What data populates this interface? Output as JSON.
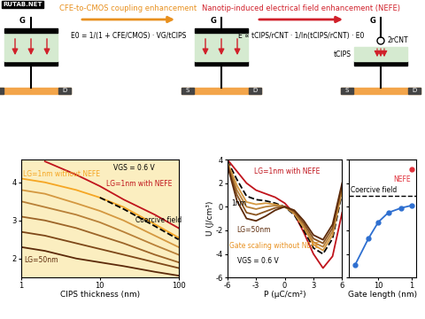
{
  "diagram": {
    "watermark": "RUTAB.NET",
    "terminals": {
      "gate": "G",
      "source": "S",
      "drain": "D"
    },
    "steps": [
      {
        "label": "CFE-to-CMOS coupling enhancement",
        "equation": "E0 = 1/(1 + CFE/CMOS) · VG/tCIPS",
        "color": "#e8901e"
      },
      {
        "label": "Nanotip-induced electrical field enhancement (NEFE)",
        "equation": "E ∝ tCIPS/rCNT · 1/ln(tCIPS/rCNT) · E0",
        "color": "#d0202a"
      }
    ],
    "tip_labels": {
      "radius": "2rCNT",
      "thickness": "tCIPS"
    }
  },
  "chart_data": [
    {
      "type": "line",
      "x_label": "CIPS thickness (nm)",
      "log": "x",
      "x": [
        1,
        2,
        5,
        10,
        20,
        50,
        100
      ],
      "xlim": [
        1,
        100
      ],
      "xticks": [
        1,
        10,
        100
      ],
      "ylim": [
        1.5,
        4.6
      ],
      "yticks": [
        2,
        3,
        4
      ],
      "series": [
        {
          "name": "LG=50nm",
          "color": "#5c2a0a",
          "values": [
            2.3,
            2.2,
            2.0,
            1.9,
            1.8,
            1.65,
            1.55
          ]
        },
        {
          "color": "#7d4718",
          "values": [
            2.7,
            2.6,
            2.4,
            2.25,
            2.1,
            1.9,
            1.75
          ]
        },
        {
          "color": "#9c6428",
          "values": [
            3.1,
            3.0,
            2.8,
            2.6,
            2.4,
            2.1,
            1.9
          ]
        },
        {
          "color": "#b88038",
          "values": [
            3.5,
            3.35,
            3.15,
            2.95,
            2.7,
            2.35,
            2.1
          ]
        },
        {
          "color": "#d49840",
          "values": [
            3.8,
            3.7,
            3.45,
            3.25,
            3.0,
            2.6,
            2.3
          ]
        },
        {
          "name": "LG=1nm without NEFE",
          "color": "#f5a623",
          "values": [
            4.1,
            4.0,
            3.8,
            3.6,
            3.35,
            2.9,
            2.55
          ]
        },
        {
          "name": "LG=1nm with NEFE",
          "color": "#c0141c",
          "values": [
            null,
            4.55,
            4.2,
            3.9,
            3.55,
            3.15,
            2.8
          ]
        },
        {
          "name": "Coercive field",
          "color": "#000000",
          "line_style": "dashed",
          "values": [
            null,
            null,
            null,
            3.6,
            3.3,
            2.85,
            2.5
          ]
        }
      ],
      "annotations": [
        {
          "text": "VGS = 0.6 V",
          "color": "#000000"
        }
      ]
    },
    {
      "type": "line",
      "x_label": "P (μC/cm²)",
      "y_label": "U (J/cm³)",
      "x": [
        -6,
        -5,
        -4,
        -3,
        -2,
        -1,
        0,
        1,
        2,
        3,
        4,
        5,
        6
      ],
      "xlim": [
        -6,
        6
      ],
      "xticks": [
        -6,
        -3,
        0,
        3,
        6
      ],
      "ylim": [
        -6,
        4
      ],
      "yticks": [
        -6,
        -4,
        -2,
        0,
        2,
        4
      ],
      "series": [
        {
          "name": "LG=1nm with NEFE",
          "color": "#c0141c",
          "values": [
            4.0,
            3.0,
            2.0,
            1.4,
            1.1,
            0.8,
            0.3,
            -0.6,
            -2.2,
            -4.0,
            -5.2,
            -4.2,
            -0.5
          ]
        },
        {
          "name": "1nm",
          "color": "#000000",
          "line_style": "dashed",
          "values": [
            3.9,
            2.3,
            0.9,
            0.6,
            0.5,
            0.3,
            0,
            -0.7,
            -2.0,
            -3.5,
            -4.0,
            -2.7,
            1.2
          ]
        },
        {
          "color": "#d49840",
          "values": [
            3.8,
            1.8,
            0.4,
            0.2,
            0.3,
            0.2,
            0,
            -0.6,
            -1.8,
            -3.2,
            -3.7,
            -2.4,
            1.4
          ]
        },
        {
          "color": "#b88038",
          "values": [
            3.7,
            1.4,
            0.0,
            -0.2,
            0.0,
            0.1,
            0,
            -0.5,
            -1.6,
            -3.0,
            -3.4,
            -2.1,
            1.6
          ]
        },
        {
          "color": "#8a5420",
          "values": [
            3.6,
            1.0,
            -0.5,
            -0.7,
            -0.4,
            -0.1,
            0,
            -0.4,
            -1.4,
            -2.7,
            -3.1,
            -1.8,
            1.8
          ]
        },
        {
          "name": "LG=50nm",
          "color": "#5c2a0a",
          "values": [
            3.5,
            0.5,
            -1.0,
            -1.2,
            -0.8,
            -0.3,
            0,
            -0.3,
            -1.2,
            -2.4,
            -2.8,
            -1.5,
            2.0
          ]
        }
      ],
      "annotations": [
        {
          "text": "Gate scaling without NEFE",
          "color": "#e8901e"
        },
        {
          "text": "VGS = 0.6 V",
          "color": "#000000"
        }
      ]
    },
    {
      "type": "scatter",
      "x_label": "Gate length (nm)",
      "log": "x",
      "xlim": [
        80,
        0.7
      ],
      "xticks": [
        10,
        1
      ],
      "ylim": [
        -6,
        4
      ],
      "yticks": [
        -6,
        -4,
        -2,
        0,
        2,
        4
      ],
      "tick_labels": "x",
      "series": [
        {
          "color": "#2e6fd0",
          "marker": "o",
          "line_style": "solid",
          "x": [
            50,
            20,
            10,
            5,
            2,
            1
          ],
          "values": [
            -4.9,
            -2.7,
            -1.3,
            -0.5,
            -0.1,
            0.1
          ]
        },
        {
          "name": "NEFE",
          "color": "#e0303a",
          "marker": "o",
          "x": [
            1
          ],
          "values": [
            3.2
          ]
        }
      ],
      "reference_lines": [
        {
          "name": "Coercive field",
          "value": 0.9,
          "line_style": "dashed",
          "color": "#000000"
        }
      ]
    }
  ]
}
